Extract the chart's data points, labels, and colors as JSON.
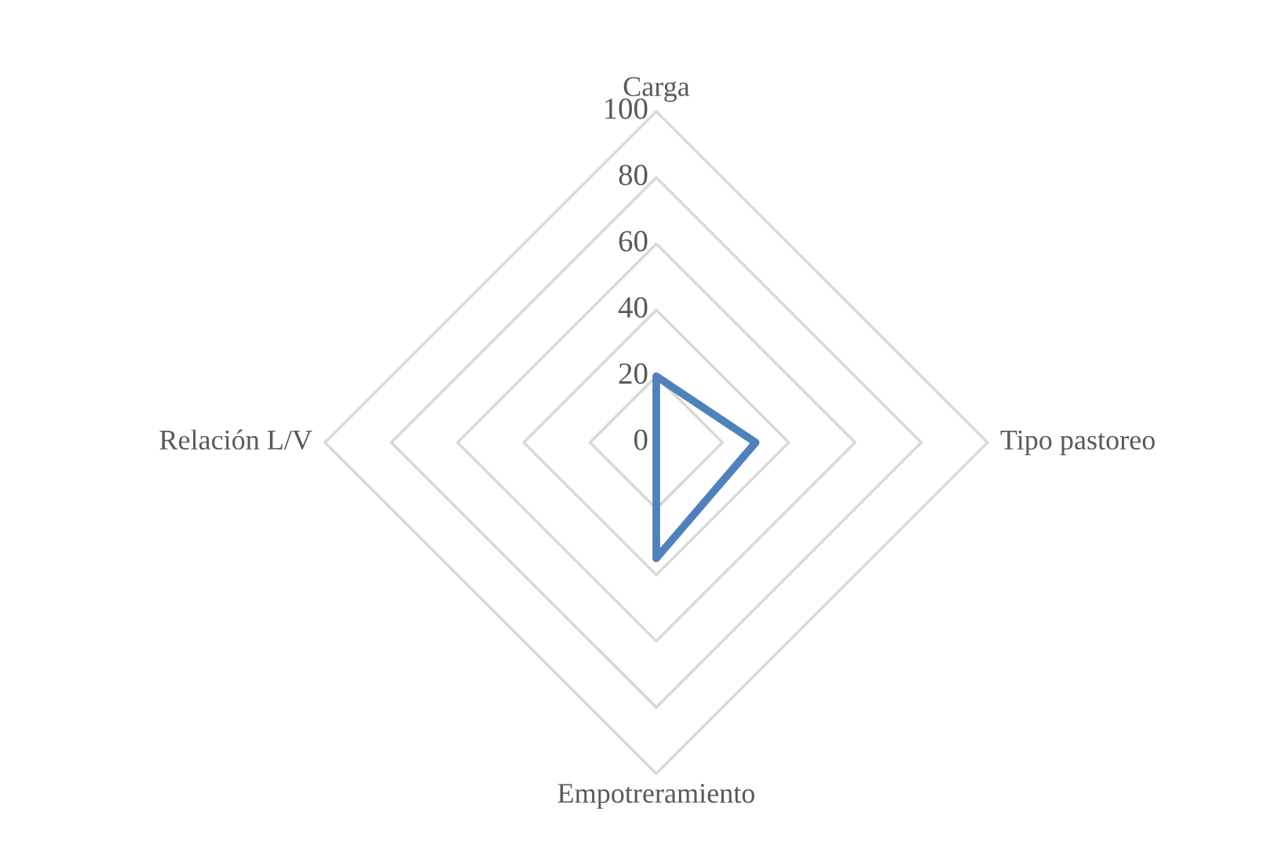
{
  "chart_data": {
    "type": "radar",
    "categories": [
      "Carga",
      "Tipo pastoreo",
      "Empotreramiento",
      "Relación L/V"
    ],
    "series": [
      {
        "color": "#4f81bd",
        "values": [
          20,
          30,
          35,
          0
        ]
      }
    ],
    "ylim": [
      0,
      100
    ],
    "yticks": [
      0,
      20,
      40,
      60,
      80,
      100
    ],
    "grid": true
  }
}
